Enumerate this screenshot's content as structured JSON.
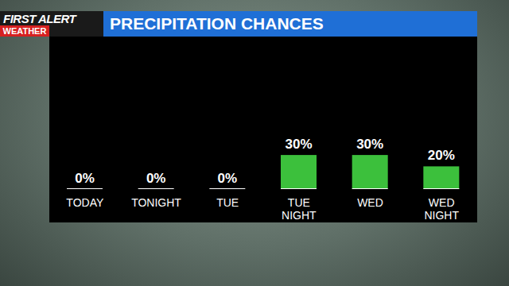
{
  "chart_data": {
    "type": "bar",
    "title": "PRECIPITATION CHANCES",
    "annotations": [
      "FIRST ALERT",
      "WEATHER"
    ],
    "categories": [
      "TODAY",
      "TONIGHT",
      "TUE",
      "TUE NIGHT",
      "WED",
      "WED NIGHT"
    ],
    "values": [
      0,
      0,
      0,
      30,
      30,
      20
    ],
    "value_labels": [
      "0%",
      "0%",
      "0%",
      "30%",
      "30%",
      "20%"
    ],
    "color": "#3cc03c",
    "ylim": [
      0,
      100
    ],
    "data_labels": true,
    "tick_labels": "x",
    "grid": false
  }
}
